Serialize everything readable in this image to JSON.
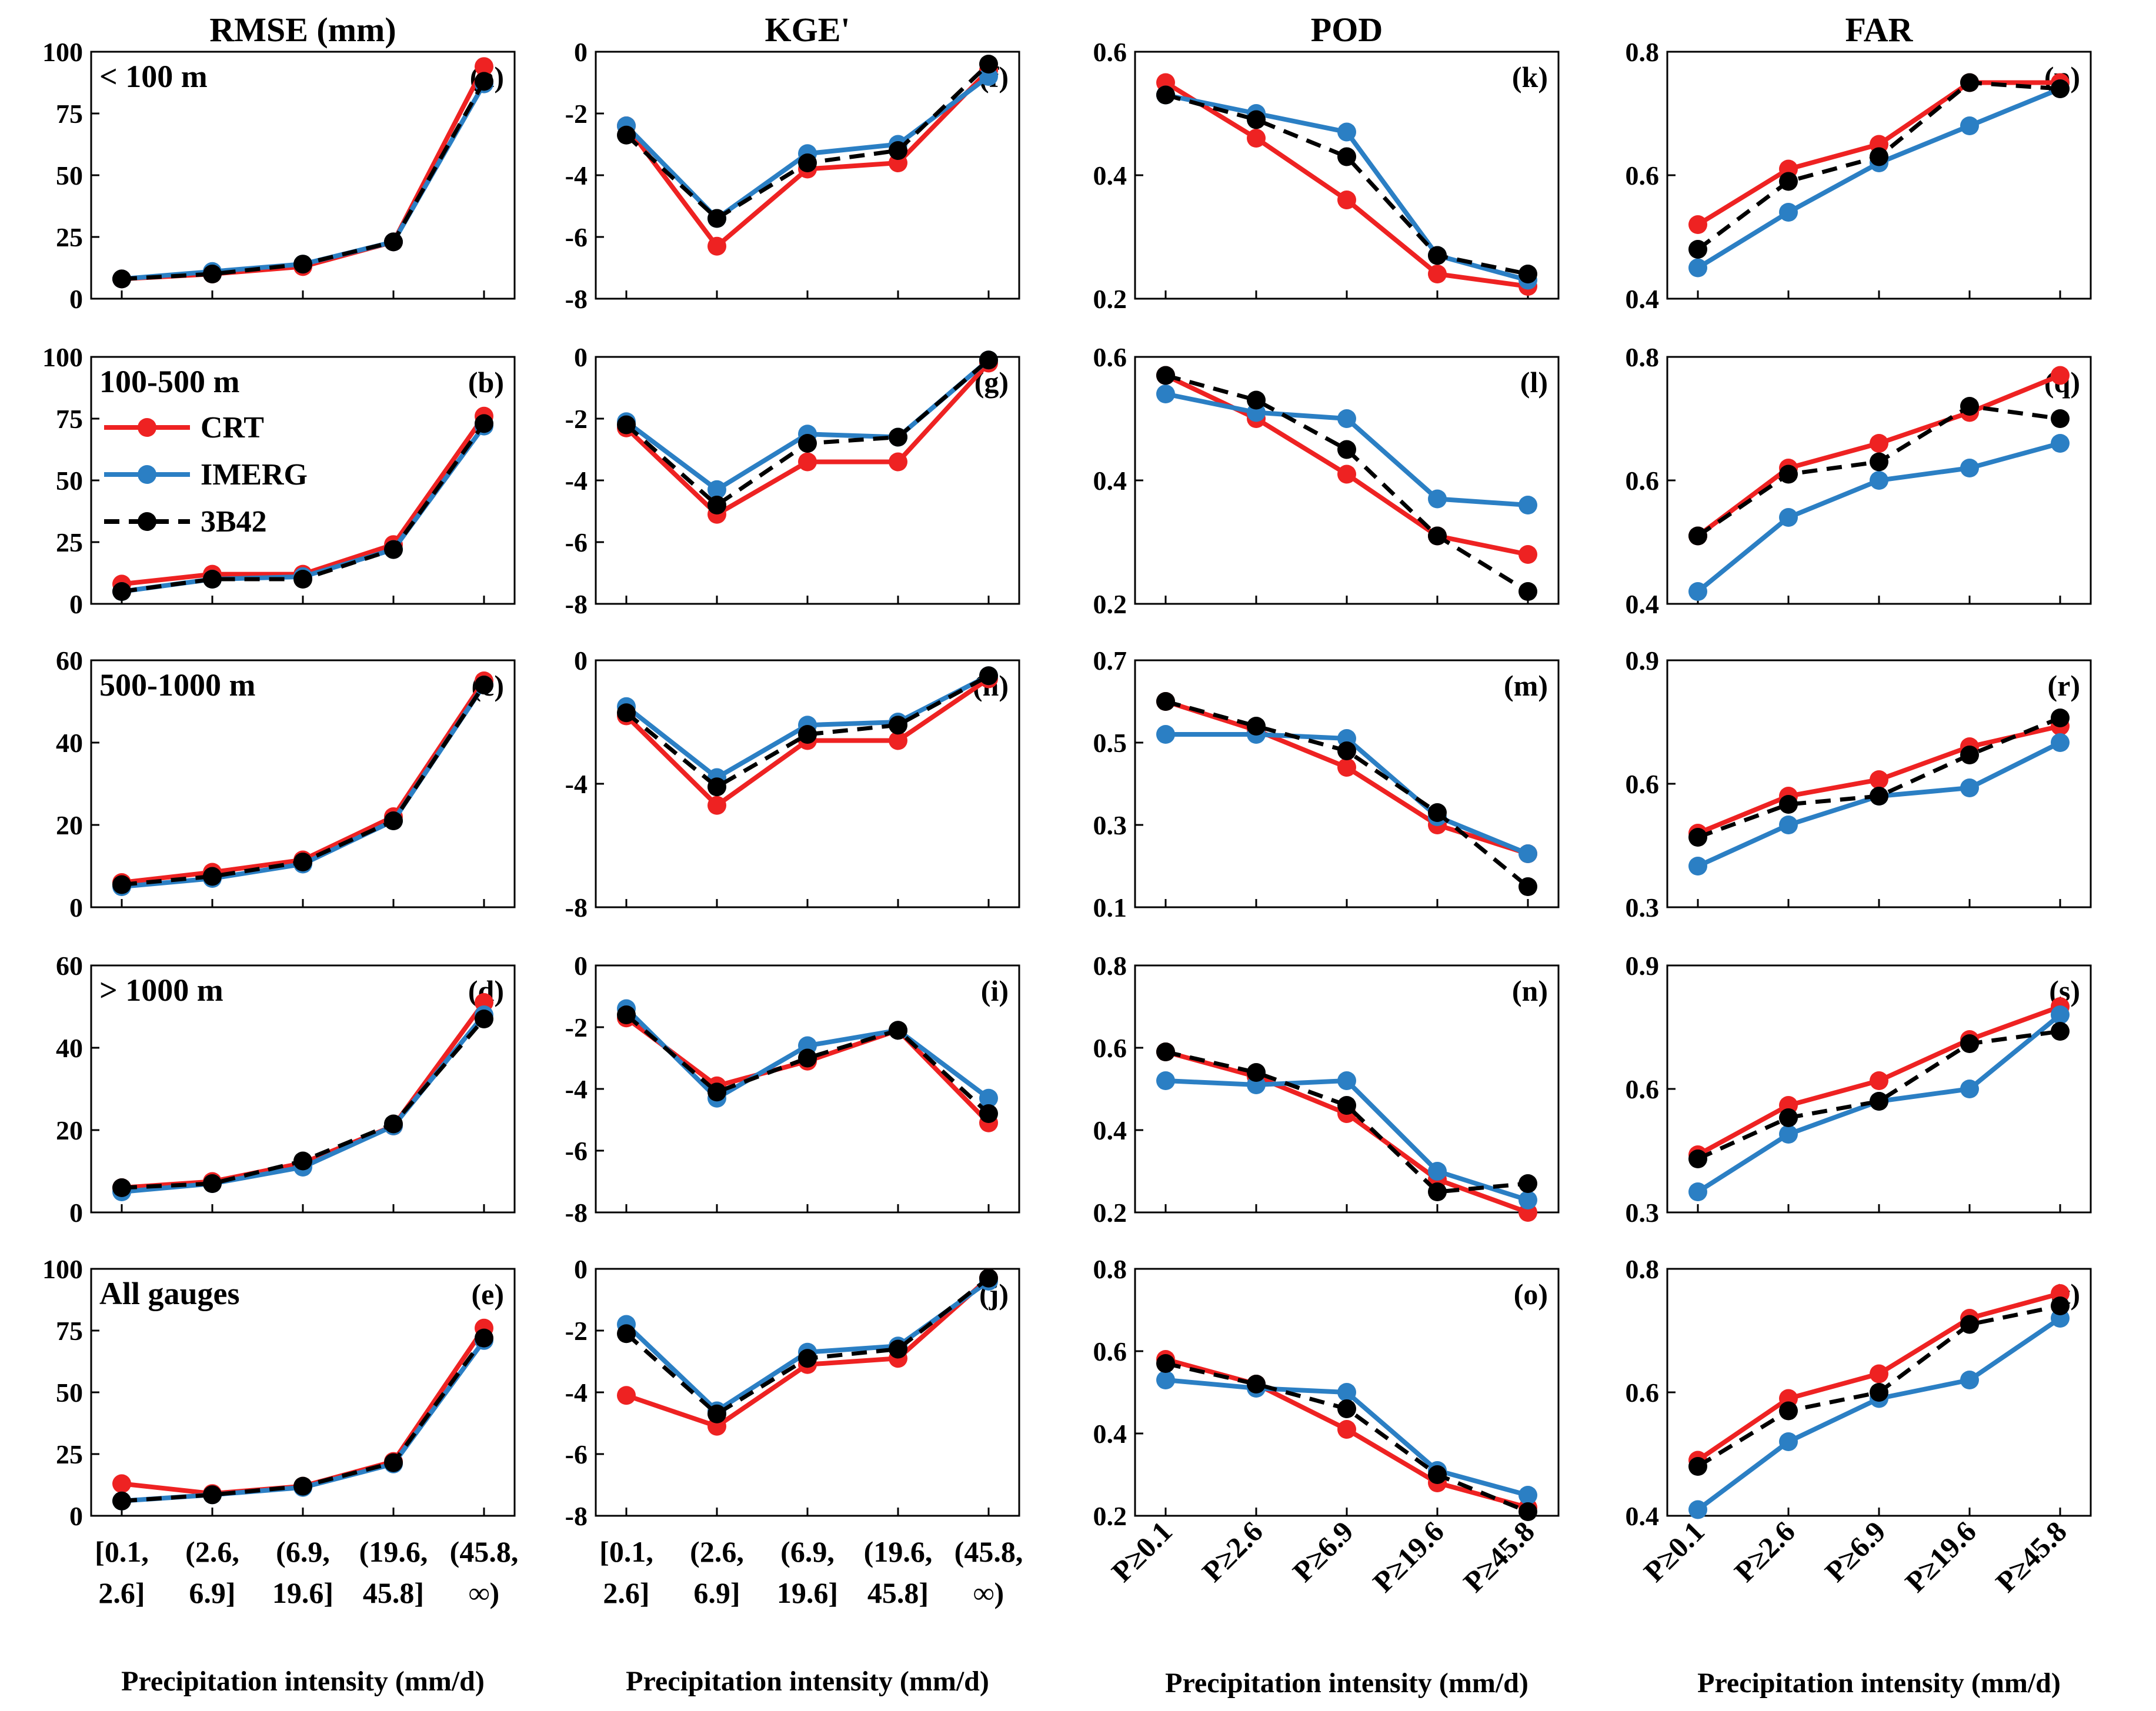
{
  "figure": {
    "column_titles": [
      "RMSE (mm)",
      "KGE'",
      "POD",
      "FAR"
    ],
    "xlabel": "Precipitation intensity (mm/d)",
    "x_tick_groups": {
      "interval": [
        [
          "[0.1,",
          "2.6]"
        ],
        [
          "(2.6,",
          "6.9]"
        ],
        [
          "(6.9,",
          "19.6]"
        ],
        [
          "(19.6,",
          "45.8]"
        ],
        [
          "(45.8,",
          "∞)"
        ]
      ],
      "threshold": [
        "P≥0.1",
        "P≥2.6",
        "P≥6.9",
        "P≥19.6",
        "P≥45.8"
      ]
    },
    "row_labels": [
      "< 100 m",
      "100-500 m",
      "500-1000 m",
      "> 1000 m",
      "All gauges"
    ],
    "legend": [
      {
        "name": "CRT",
        "color": "#ee2222",
        "dash": false
      },
      {
        "name": "IMERG",
        "color": "#2b7fc4",
        "dash": false
      },
      {
        "name": "3B42",
        "color": "#000000",
        "dash": true
      }
    ]
  },
  "chart_data": [
    {
      "panel": "(a)",
      "type": "line",
      "title": "RMSE (mm)",
      "row_label": "< 100 m",
      "ylim": [
        0,
        100
      ],
      "yticks": [
        0,
        25,
        50,
        75,
        100
      ],
      "categories": [
        "[0.1, 2.6]",
        "(2.6, 6.9]",
        "(6.9, 19.6]",
        "(19.6, 45.8]",
        "(45.8, ∞)"
      ],
      "series": [
        {
          "name": "CRT",
          "values": [
            8,
            10,
            13,
            23,
            94
          ]
        },
        {
          "name": "IMERG",
          "values": [
            8,
            11,
            14,
            23,
            87
          ]
        },
        {
          "name": "3B42",
          "values": [
            8,
            10,
            14,
            23,
            88
          ]
        }
      ]
    },
    {
      "panel": "(b)",
      "type": "line",
      "row_label": "100-500 m",
      "ylim": [
        0,
        100
      ],
      "yticks": [
        0,
        25,
        50,
        75,
        100
      ],
      "series": [
        {
          "name": "CRT",
          "values": [
            8,
            12,
            12,
            24,
            76
          ]
        },
        {
          "name": "IMERG",
          "values": [
            5,
            10,
            11,
            22,
            72
          ]
        },
        {
          "name": "3B42",
          "values": [
            5,
            10,
            10,
            22,
            73
          ]
        }
      ]
    },
    {
      "panel": "(c)",
      "type": "line",
      "row_label": "500-1000 m",
      "ylim": [
        0,
        60
      ],
      "yticks": [
        0,
        20,
        40,
        60
      ],
      "series": [
        {
          "name": "CRT",
          "values": [
            6,
            8.5,
            11.5,
            22,
            55
          ]
        },
        {
          "name": "IMERG",
          "values": [
            5,
            7,
            10.5,
            21,
            54
          ]
        },
        {
          "name": "3B42",
          "values": [
            5.5,
            7.5,
            11,
            21,
            54
          ]
        }
      ]
    },
    {
      "panel": "(d)",
      "type": "line",
      "row_label": "> 1000 m",
      "ylim": [
        0,
        60
      ],
      "yticks": [
        0,
        20,
        40,
        60
      ],
      "series": [
        {
          "name": "CRT",
          "values": [
            6,
            7.5,
            12,
            21,
            51
          ]
        },
        {
          "name": "IMERG",
          "values": [
            5,
            7,
            11,
            21,
            48
          ]
        },
        {
          "name": "3B42",
          "values": [
            6,
            7,
            12.5,
            21.5,
            47
          ]
        }
      ]
    },
    {
      "panel": "(e)",
      "type": "line",
      "row_label": "All gauges",
      "ylim": [
        0,
        100
      ],
      "yticks": [
        0,
        25,
        50,
        75,
        100
      ],
      "xlabel": "Precipitation intensity (mm/d)",
      "series": [
        {
          "name": "CRT",
          "values": [
            13,
            9,
            12,
            22,
            76
          ]
        },
        {
          "name": "IMERG",
          "values": [
            6,
            8.5,
            11.5,
            21,
            71
          ]
        },
        {
          "name": "3B42",
          "values": [
            6,
            8.5,
            12,
            21.5,
            72
          ]
        }
      ]
    },
    {
      "panel": "(f)",
      "type": "line",
      "title": "KGE'",
      "ylim": [
        -8,
        0
      ],
      "yticks": [
        -8,
        -6,
        -4,
        -2,
        0
      ],
      "series": [
        {
          "name": "CRT",
          "values": [
            -2.4,
            -6.3,
            -3.8,
            -3.6,
            -0.6
          ]
        },
        {
          "name": "IMERG",
          "values": [
            -2.4,
            -5.4,
            -3.3,
            -3.0,
            -0.8
          ]
        },
        {
          "name": "3B42",
          "values": [
            -2.7,
            -5.4,
            -3.6,
            -3.2,
            -0.4
          ]
        }
      ]
    },
    {
      "panel": "(g)",
      "type": "line",
      "ylim": [
        -8,
        0
      ],
      "yticks": [
        -8,
        -6,
        -4,
        -2,
        0
      ],
      "series": [
        {
          "name": "CRT",
          "values": [
            -2.3,
            -5.1,
            -3.4,
            -3.4,
            -0.2
          ]
        },
        {
          "name": "IMERG",
          "values": [
            -2.1,
            -4.3,
            -2.5,
            -2.6,
            -0.1
          ]
        },
        {
          "name": "3B42",
          "values": [
            -2.2,
            -4.8,
            -2.8,
            -2.6,
            -0.1
          ]
        }
      ]
    },
    {
      "panel": "(h)",
      "type": "line",
      "ylim": [
        -8,
        0
      ],
      "yticks": [
        -8,
        -4,
        0
      ],
      "series": [
        {
          "name": "CRT",
          "values": [
            -1.8,
            -4.7,
            -2.6,
            -2.6,
            -0.6
          ]
        },
        {
          "name": "IMERG",
          "values": [
            -1.5,
            -3.8,
            -2.1,
            -2.0,
            -0.5
          ]
        },
        {
          "name": "3B42",
          "values": [
            -1.7,
            -4.1,
            -2.4,
            -2.1,
            -0.5
          ]
        }
      ]
    },
    {
      "panel": "(i)",
      "type": "line",
      "ylim": [
        -8,
        0
      ],
      "yticks": [
        -8,
        -6,
        -4,
        -2,
        0
      ],
      "series": [
        {
          "name": "CRT",
          "values": [
            -1.7,
            -3.9,
            -3.1,
            -2.1,
            -5.1
          ]
        },
        {
          "name": "IMERG",
          "values": [
            -1.4,
            -4.3,
            -2.6,
            -2.1,
            -4.3
          ]
        },
        {
          "name": "3B42",
          "values": [
            -1.6,
            -4.1,
            -3.0,
            -2.1,
            -4.8
          ]
        }
      ]
    },
    {
      "panel": "(j)",
      "type": "line",
      "ylim": [
        -8,
        0
      ],
      "yticks": [
        -8,
        -6,
        -4,
        -2,
        0
      ],
      "xlabel": "Precipitation intensity (mm/d)",
      "series": [
        {
          "name": "CRT",
          "values": [
            -4.1,
            -5.1,
            -3.1,
            -2.9,
            -0.3
          ]
        },
        {
          "name": "IMERG",
          "values": [
            -1.8,
            -4.6,
            -2.7,
            -2.5,
            -0.4
          ]
        },
        {
          "name": "3B42",
          "values": [
            -2.1,
            -4.7,
            -2.9,
            -2.6,
            -0.3
          ]
        }
      ]
    },
    {
      "panel": "(k)",
      "type": "line",
      "title": "POD",
      "ylim": [
        0.2,
        0.6
      ],
      "yticks": [
        0.2,
        0.4,
        0.6
      ],
      "categories": [
        "P≥0.1",
        "P≥2.6",
        "P≥6.9",
        "P≥19.6",
        "P≥45.8"
      ],
      "series": [
        {
          "name": "CRT",
          "values": [
            0.55,
            0.46,
            0.36,
            0.24,
            0.22
          ]
        },
        {
          "name": "IMERG",
          "values": [
            0.53,
            0.5,
            0.47,
            0.27,
            0.23
          ]
        },
        {
          "name": "3B42",
          "values": [
            0.53,
            0.49,
            0.43,
            0.27,
            0.24
          ]
        }
      ]
    },
    {
      "panel": "(l)",
      "type": "line",
      "ylim": [
        0.2,
        0.6
      ],
      "yticks": [
        0.2,
        0.4,
        0.6
      ],
      "series": [
        {
          "name": "CRT",
          "values": [
            0.57,
            0.5,
            0.41,
            0.31,
            0.28
          ]
        },
        {
          "name": "IMERG",
          "values": [
            0.54,
            0.51,
            0.5,
            0.37,
            0.36
          ]
        },
        {
          "name": "3B42",
          "values": [
            0.57,
            0.53,
            0.45,
            0.31,
            0.22
          ]
        }
      ]
    },
    {
      "panel": "(m)",
      "type": "line",
      "ylim": [
        0.1,
        0.7
      ],
      "yticks": [
        0.1,
        0.3,
        0.5,
        0.7
      ],
      "series": [
        {
          "name": "CRT",
          "values": [
            0.6,
            0.53,
            0.44,
            0.3,
            0.23
          ]
        },
        {
          "name": "IMERG",
          "values": [
            0.52,
            0.52,
            0.51,
            0.32,
            0.23
          ]
        },
        {
          "name": "3B42",
          "values": [
            0.6,
            0.54,
            0.48,
            0.33,
            0.15
          ]
        }
      ]
    },
    {
      "panel": "(n)",
      "type": "line",
      "ylim": [
        0.2,
        0.8
      ],
      "yticks": [
        0.2,
        0.4,
        0.6,
        0.8
      ],
      "series": [
        {
          "name": "CRT",
          "values": [
            0.59,
            0.53,
            0.44,
            0.28,
            0.2
          ]
        },
        {
          "name": "IMERG",
          "values": [
            0.52,
            0.51,
            0.52,
            0.3,
            0.23
          ]
        },
        {
          "name": "3B42",
          "values": [
            0.59,
            0.54,
            0.46,
            0.25,
            0.27
          ]
        }
      ]
    },
    {
      "panel": "(o)",
      "type": "line",
      "ylim": [
        0.2,
        0.8
      ],
      "yticks": [
        0.2,
        0.4,
        0.6,
        0.8
      ],
      "xlabel": "Precipitation intensity (mm/d)",
      "series": [
        {
          "name": "CRT",
          "values": [
            0.58,
            0.52,
            0.41,
            0.28,
            0.22
          ]
        },
        {
          "name": "IMERG",
          "values": [
            0.53,
            0.51,
            0.5,
            0.31,
            0.25
          ]
        },
        {
          "name": "3B42",
          "values": [
            0.57,
            0.52,
            0.46,
            0.3,
            0.21
          ]
        }
      ]
    },
    {
      "panel": "(p)",
      "type": "line",
      "title": "FAR",
      "ylim": [
        0.4,
        0.8
      ],
      "yticks": [
        0.4,
        0.6,
        0.8
      ],
      "series": [
        {
          "name": "CRT",
          "values": [
            0.52,
            0.61,
            0.65,
            0.75,
            0.75
          ]
        },
        {
          "name": "IMERG",
          "values": [
            0.45,
            0.54,
            0.62,
            0.68,
            0.74
          ]
        },
        {
          "name": "3B42",
          "values": [
            0.48,
            0.59,
            0.63,
            0.75,
            0.74
          ]
        }
      ]
    },
    {
      "panel": "(q)",
      "type": "line",
      "ylim": [
        0.4,
        0.8
      ],
      "yticks": [
        0.4,
        0.6,
        0.8
      ],
      "series": [
        {
          "name": "CRT",
          "values": [
            0.51,
            0.62,
            0.66,
            0.71,
            0.77
          ]
        },
        {
          "name": "IMERG",
          "values": [
            0.42,
            0.54,
            0.6,
            0.62,
            0.66
          ]
        },
        {
          "name": "3B42",
          "values": [
            0.51,
            0.61,
            0.63,
            0.72,
            0.7
          ]
        }
      ]
    },
    {
      "panel": "(r)",
      "type": "line",
      "ylim": [
        0.3,
        0.9
      ],
      "yticks": [
        0.3,
        0.6,
        0.9
      ],
      "series": [
        {
          "name": "CRT",
          "values": [
            0.48,
            0.57,
            0.61,
            0.69,
            0.74
          ]
        },
        {
          "name": "IMERG",
          "values": [
            0.4,
            0.5,
            0.57,
            0.59,
            0.7
          ]
        },
        {
          "name": "3B42",
          "values": [
            0.47,
            0.55,
            0.57,
            0.67,
            0.76
          ]
        }
      ]
    },
    {
      "panel": "(s)",
      "type": "line",
      "ylim": [
        0.3,
        0.9
      ],
      "yticks": [
        0.3,
        0.6,
        0.9
      ],
      "series": [
        {
          "name": "CRT",
          "values": [
            0.44,
            0.56,
            0.62,
            0.72,
            0.8
          ]
        },
        {
          "name": "IMERG",
          "values": [
            0.35,
            0.49,
            0.57,
            0.6,
            0.78
          ]
        },
        {
          "name": "3B42",
          "values": [
            0.43,
            0.53,
            0.57,
            0.71,
            0.74
          ]
        }
      ]
    },
    {
      "panel": "(t)",
      "type": "line",
      "ylim": [
        0.4,
        0.8
      ],
      "yticks": [
        0.4,
        0.6,
        0.8
      ],
      "xlabel": "Precipitation intensity (mm/d)",
      "series": [
        {
          "name": "CRT",
          "values": [
            0.49,
            0.59,
            0.63,
            0.72,
            0.76
          ]
        },
        {
          "name": "IMERG",
          "values": [
            0.41,
            0.52,
            0.59,
            0.62,
            0.72
          ]
        },
        {
          "name": "3B42",
          "values": [
            0.48,
            0.57,
            0.6,
            0.71,
            0.74
          ]
        }
      ]
    }
  ]
}
